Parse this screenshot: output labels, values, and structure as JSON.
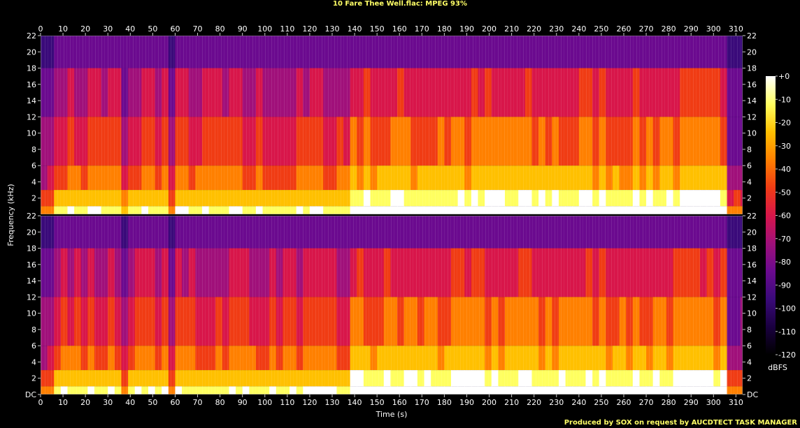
{
  "title": "10 Fare Thee Well.flac: MPEG 93%",
  "footer": "Produced by SOX on request by AUCDTECT TASK MANAGER",
  "chart_data": {
    "type": "heatmap",
    "title": "10 Fare Thee Well.flac: MPEG 93%",
    "xlabel": "Time (s)",
    "ylabel": "Frequency (kHz)",
    "colorbar_label": "dBFS",
    "x_ticks": [
      "0",
      "10",
      "20",
      "30",
      "40",
      "50",
      "60",
      "70",
      "80",
      "90",
      "100",
      "110",
      "120",
      "130",
      "140",
      "150",
      "160",
      "170",
      "180",
      "190",
      "200",
      "210",
      "220",
      "230",
      "240",
      "250",
      "260",
      "270",
      "280",
      "290",
      "300",
      "310"
    ],
    "y_ticks": [
      "DC",
      "2",
      "4",
      "6",
      "8",
      "10",
      "12",
      "14",
      "16",
      "18",
      "20",
      "22"
    ],
    "colorbar_ticks": [
      "+0",
      "-10",
      "-20",
      "-30",
      "-40",
      "-50",
      "-60",
      "-70",
      "-80",
      "-90",
      "-100",
      "-110",
      "-120"
    ],
    "xlim": [
      0,
      313
    ],
    "ylim_khz": [
      0,
      22
    ],
    "colorbar_range_db": [
      -120,
      0
    ],
    "channels": [
      {
        "name": "",
        "cutoff_khz": 18
      },
      {
        "name": "",
        "cutoff_khz": 18
      }
    ],
    "colormap": [
      "#000000",
      "#1a0040",
      "#3a0a7a",
      "#6b0a8f",
      "#a0107a",
      "#d8164a",
      "#f03c14",
      "#ff8000",
      "#ffc000",
      "#ffff60",
      "#ffffff"
    ]
  }
}
